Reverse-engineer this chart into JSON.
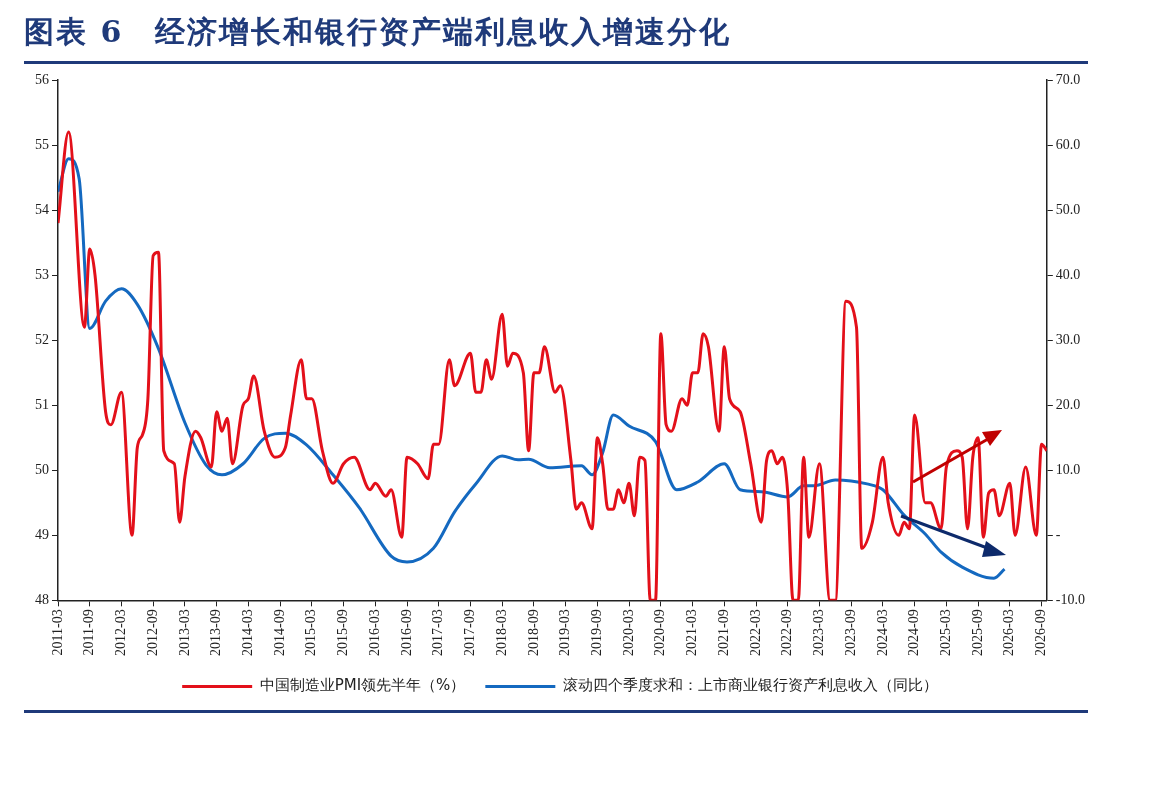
{
  "chart_data": {
    "type": "line",
    "title": "图表 6　经济增长和银行资产端利息收入增速分化",
    "xlim": [
      "2011-03",
      "2026-10"
    ],
    "xticks": [
      "2011-03",
      "2011-09",
      "2012-03",
      "2012-09",
      "2013-03",
      "2013-09",
      "2014-03",
      "2014-09",
      "2015-03",
      "2015-09",
      "2016-03",
      "2016-09",
      "2017-03",
      "2017-09",
      "2018-03",
      "2018-09",
      "2019-03",
      "2019-09",
      "2020-03",
      "2020-09",
      "2021-03",
      "2021-09",
      "2022-03",
      "2022-09",
      "2023-03",
      "2023-09",
      "2024-03",
      "2024-09",
      "2025-03",
      "2025-09",
      "2026-03",
      "2026-09"
    ],
    "ylim": [
      48,
      56
    ],
    "yticks": [
      48,
      49,
      50,
      51,
      52,
      53,
      54,
      55,
      56
    ],
    "y2lim": [
      -10,
      70
    ],
    "y2ticks": [
      {
        "value": -10,
        "label": "-10.0"
      },
      {
        "value": 0,
        "label": "-"
      },
      {
        "value": 10,
        "label": "10.0"
      },
      {
        "value": 20,
        "label": "20.0"
      },
      {
        "value": 30,
        "label": "30.0"
      },
      {
        "value": 40,
        "label": "40.0"
      },
      {
        "value": 50,
        "label": "50.0"
      },
      {
        "value": 60,
        "label": "60.0"
      },
      {
        "value": 70,
        "label": "70.0"
      }
    ],
    "grid": false,
    "legend": "bottom",
    "marker": "none",
    "line_style": "solid",
    "series": [
      {
        "name": "中国制造业PMI领先半年（%）",
        "color": "#e3101a",
        "axis": "y",
        "x": [
          "2011-03",
          "2011-05",
          "2011-08",
          "2011-09",
          "2011-10",
          "2011-12",
          "2012-01",
          "2012-03",
          "2012-05",
          "2012-06",
          "2012-07",
          "2012-08",
          "2012-09",
          "2012-10",
          "2012-11",
          "2013-01",
          "2013-02",
          "2013-03",
          "2013-05",
          "2013-06",
          "2013-08",
          "2013-09",
          "2013-10",
          "2013-11",
          "2013-12",
          "2014-02",
          "2014-03",
          "2014-04",
          "2014-06",
          "2014-08",
          "2014-10",
          "2014-11",
          "2015-01",
          "2015-02",
          "2015-03",
          "2015-05",
          "2015-07",
          "2015-09",
          "2015-11",
          "2016-02",
          "2016-03",
          "2016-05",
          "2016-06",
          "2016-08",
          "2016-09",
          "2016-11",
          "2017-01",
          "2017-02",
          "2017-03",
          "2017-05",
          "2017-06",
          "2017-09",
          "2017-10",
          "2017-11",
          "2017-12",
          "2018-01",
          "2018-03",
          "2018-04",
          "2018-05",
          "2018-07",
          "2018-08",
          "2018-09",
          "2018-10",
          "2018-11",
          "2019-01",
          "2019-02",
          "2019-04",
          "2019-05",
          "2019-06",
          "2019-08",
          "2019-09",
          "2019-10",
          "2019-11",
          "2019-12",
          "2020-01",
          "2020-02",
          "2020-03",
          "2020-04",
          "2020-05",
          "2020-06",
          "2020-07",
          "2020-08",
          "2020-09",
          "2020-10",
          "2020-11",
          "2021-01",
          "2021-02",
          "2021-03",
          "2021-04",
          "2021-05",
          "2021-06",
          "2021-08",
          "2021-09",
          "2021-10",
          "2021-12",
          "2022-02",
          "2022-04",
          "2022-05",
          "2022-06",
          "2022-07",
          "2022-08",
          "2022-09",
          "2022-10",
          "2022-11",
          "2022-12",
          "2023-01",
          "2023-03",
          "2023-05",
          "2023-06",
          "2023-08",
          "2023-10",
          "2023-11",
          "2024-01",
          "2024-03",
          "2024-04",
          "2024-06",
          "2024-07",
          "2024-08",
          "2024-09",
          "2024-11",
          "2024-12",
          "2025-02",
          "2025-03",
          "2025-05",
          "2025-06",
          "2025-07",
          "2025-08",
          "2025-09",
          "2025-10",
          "2025-11",
          "2025-12",
          "2026-01",
          "2026-03",
          "2026-04",
          "2026-06",
          "2026-08",
          "2026-09",
          "2026-10"
        ],
        "values": [
          53.8,
          55.2,
          52.2,
          53.4,
          53.0,
          50.9,
          50.7,
          51.2,
          49.0,
          50.35,
          50.55,
          51.1,
          53.3,
          53.35,
          50.3,
          50.1,
          49.2,
          49.9,
          50.6,
          50.5,
          50.05,
          50.9,
          50.6,
          50.8,
          50.1,
          51.0,
          51.1,
          51.45,
          50.6,
          50.2,
          50.35,
          50.85,
          51.7,
          51.1,
          51.1,
          50.3,
          49.8,
          50.1,
          50.2,
          49.7,
          49.8,
          49.6,
          49.7,
          48.97,
          50.2,
          50.1,
          49.87,
          50.4,
          50.4,
          51.7,
          51.3,
          51.8,
          51.2,
          51.2,
          51.7,
          51.4,
          52.4,
          51.6,
          51.8,
          51.5,
          50.3,
          51.5,
          51.5,
          51.9,
          51.2,
          51.3,
          50.15,
          49.4,
          49.5,
          49.1,
          50.5,
          50.1,
          49.4,
          49.4,
          49.7,
          49.5,
          49.8,
          49.3,
          50.2,
          50.15,
          48,
          48,
          52.1,
          50.7,
          50.6,
          51.1,
          51.0,
          51.5,
          51.5,
          52.1,
          51.9,
          50.6,
          51.9,
          51.1,
          50.9,
          50.1,
          49.2,
          50.15,
          50.3,
          50.1,
          50.2,
          49.65,
          48,
          48,
          50.2,
          48.97,
          50.1,
          48,
          48,
          52.6,
          52.2,
          48.8,
          49.2,
          50.2,
          49.5,
          49.0,
          49.2,
          49.1,
          50.85,
          49.5,
          49.5,
          49.1,
          50.05,
          50.3,
          50.2,
          49.1,
          50.2,
          50.5,
          48.97,
          49.65,
          49.7,
          49.3,
          49.8,
          49.0,
          50.05,
          49.0,
          50.4,
          50.3
        ]
      },
      {
        "name": "滚动四个季度求和：上市商业银行资产利息收入（同比）",
        "color": "#1469c0",
        "axis": "y2",
        "x": [
          "2011-03",
          "2011-05",
          "2011-07",
          "2011-09",
          "2011-12",
          "2012-03",
          "2012-06",
          "2012-10",
          "2013-03",
          "2013-07",
          "2013-10",
          "2014-02",
          "2014-06",
          "2014-10",
          "2015-02",
          "2015-07",
          "2015-12",
          "2016-06",
          "2016-09",
          "2017-02",
          "2017-06",
          "2017-10",
          "2018-03",
          "2018-06",
          "2018-08",
          "2018-12",
          "2019-06",
          "2019-08",
          "2019-10",
          "2019-12",
          "2020-03",
          "2020-08",
          "2020-12",
          "2021-04",
          "2021-09",
          "2021-12",
          "2022-04",
          "2022-09",
          "2022-12",
          "2023-02",
          "2023-06",
          "2023-12",
          "2024-03",
          "2024-07",
          "2024-11",
          "2025-02",
          "2025-06",
          "2025-12",
          "2026-02"
        ],
        "values": [
          52.8,
          57.9,
          54.8,
          31.8,
          36.0,
          37.9,
          35.5,
          28.7,
          17.3,
          10.8,
          9.3,
          11.0,
          14.9,
          15.7,
          13.9,
          9.3,
          4.2,
          -3.2,
          -4.1,
          -2.0,
          3.6,
          7.9,
          12.2,
          11.6,
          11.7,
          10.4,
          10.7,
          9.3,
          12.7,
          18.5,
          16.8,
          14.4,
          7.0,
          8.2,
          11.0,
          7.0,
          6.7,
          5.9,
          7.6,
          7.6,
          8.5,
          7.9,
          7.0,
          3.1,
          0.2,
          -2.6,
          -4.9,
          -6.6,
          -5.2
        ]
      }
    ]
  }
}
